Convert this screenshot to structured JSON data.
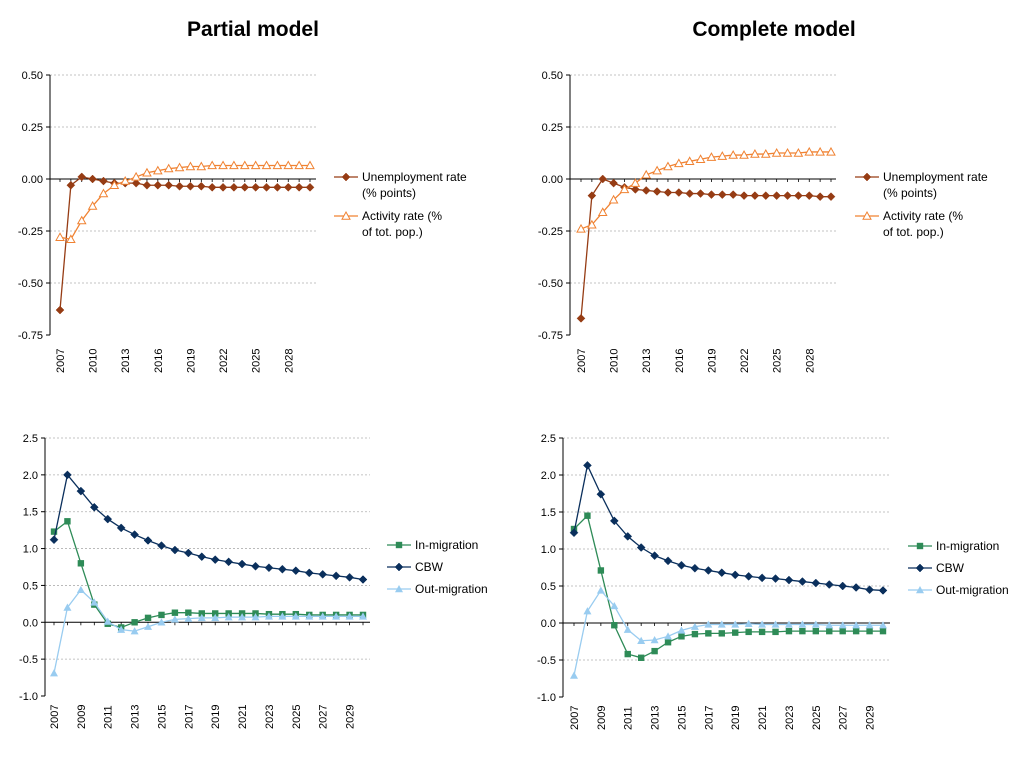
{
  "titles": {
    "left": "Partial model",
    "right": "Complete model"
  },
  "chart_data": [
    {
      "id": "partial-labour",
      "type": "line",
      "title": "",
      "xlabel": "",
      "ylabel": "",
      "x": [
        2007,
        2008,
        2009,
        2010,
        2011,
        2012,
        2013,
        2014,
        2015,
        2016,
        2017,
        2018,
        2019,
        2020,
        2021,
        2022,
        2023,
        2024,
        2025,
        2026,
        2027,
        2028,
        2029,
        2030
      ],
      "x_tick_labels": [
        "2007",
        "2010",
        "2013",
        "2016",
        "2019",
        "2022",
        "2025",
        "2028"
      ],
      "ylim": [
        -0.75,
        0.5
      ],
      "y_ticks": [
        -0.75,
        -0.5,
        -0.25,
        0,
        0.25,
        0.5
      ],
      "y_tick_labels": [
        "-0.75",
        "-0.50",
        "-0.25",
        "0.00",
        "0.25",
        "0.50"
      ],
      "grid": true,
      "legend": "right",
      "series": [
        {
          "name": "Unemployment rate (% points)",
          "color": "#963c14",
          "marker": "diamond",
          "values": [
            -0.63,
            -0.03,
            0.01,
            0.0,
            -0.01,
            -0.02,
            -0.02,
            -0.02,
            -0.03,
            -0.03,
            -0.03,
            -0.035,
            -0.035,
            -0.035,
            -0.04,
            -0.04,
            -0.04,
            -0.04,
            -0.04,
            -0.04,
            -0.04,
            -0.04,
            -0.04,
            -0.04
          ]
        },
        {
          "name": "Activity rate (% of tot. pop.)",
          "color": "#f08232",
          "marker": "triangle-open",
          "values": [
            -0.28,
            -0.29,
            -0.2,
            -0.13,
            -0.07,
            -0.03,
            -0.01,
            0.01,
            0.03,
            0.04,
            0.05,
            0.055,
            0.06,
            0.06,
            0.065,
            0.065,
            0.065,
            0.065,
            0.065,
            0.065,
            0.065,
            0.065,
            0.065,
            0.065
          ]
        }
      ]
    },
    {
      "id": "complete-labour",
      "type": "line",
      "title": "",
      "xlabel": "",
      "ylabel": "",
      "x": [
        2007,
        2008,
        2009,
        2010,
        2011,
        2012,
        2013,
        2014,
        2015,
        2016,
        2017,
        2018,
        2019,
        2020,
        2021,
        2022,
        2023,
        2024,
        2025,
        2026,
        2027,
        2028,
        2029,
        2030
      ],
      "x_tick_labels": [
        "2007",
        "2010",
        "2013",
        "2016",
        "2019",
        "2022",
        "2025",
        "2028"
      ],
      "ylim": [
        -0.75,
        0.5
      ],
      "y_ticks": [
        -0.75,
        -0.5,
        -0.25,
        0,
        0.25,
        0.5
      ],
      "y_tick_labels": [
        "-0.75",
        "-0.50",
        "-0.25",
        "0.00",
        "0.25",
        "0.50"
      ],
      "grid": true,
      "legend": "right",
      "series": [
        {
          "name": "Unemployment rate (% points)",
          "color": "#963c14",
          "marker": "diamond",
          "values": [
            -0.67,
            -0.08,
            0.0,
            -0.02,
            -0.04,
            -0.05,
            -0.055,
            -0.06,
            -0.065,
            -0.065,
            -0.07,
            -0.07,
            -0.075,
            -0.075,
            -0.075,
            -0.08,
            -0.08,
            -0.08,
            -0.08,
            -0.08,
            -0.08,
            -0.08,
            -0.085,
            -0.085
          ]
        },
        {
          "name": "Activity rate (% of tot. pop.)",
          "color": "#f08232",
          "marker": "triangle-open",
          "values": [
            -0.24,
            -0.22,
            -0.16,
            -0.1,
            -0.05,
            -0.02,
            0.02,
            0.04,
            0.06,
            0.075,
            0.085,
            0.095,
            0.105,
            0.11,
            0.115,
            0.115,
            0.12,
            0.12,
            0.125,
            0.125,
            0.125,
            0.13,
            0.13,
            0.13
          ]
        }
      ]
    },
    {
      "id": "partial-migration",
      "type": "line",
      "title": "",
      "xlabel": "",
      "ylabel": "",
      "x": [
        2007,
        2008,
        2009,
        2010,
        2011,
        2012,
        2013,
        2014,
        2015,
        2016,
        2017,
        2018,
        2019,
        2020,
        2021,
        2022,
        2023,
        2024,
        2025,
        2026,
        2027,
        2028,
        2029,
        2030
      ],
      "x_tick_labels": [
        "2007",
        "2009",
        "2011",
        "2013",
        "2015",
        "2017",
        "2019",
        "2021",
        "2023",
        "2025",
        "2027",
        "2029"
      ],
      "ylim": [
        -1.0,
        2.5
      ],
      "y_ticks": [
        -1,
        -0.5,
        0,
        0.5,
        1,
        1.5,
        2,
        2.5
      ],
      "y_tick_labels": [
        "-1.0",
        "-0.5",
        "0.0",
        "0.5",
        "1.0",
        "1.5",
        "2.0",
        "2.5"
      ],
      "grid": true,
      "legend": "right",
      "series": [
        {
          "name": "In-migration",
          "color": "#2e8b57",
          "marker": "square",
          "values": [
            1.23,
            1.37,
            0.8,
            0.24,
            -0.02,
            -0.07,
            0.0,
            0.06,
            0.1,
            0.13,
            0.13,
            0.12,
            0.12,
            0.12,
            0.12,
            0.12,
            0.11,
            0.11,
            0.11,
            0.1,
            0.1,
            0.1,
            0.1,
            0.1
          ]
        },
        {
          "name": "CBW",
          "color": "#0a2f5c",
          "marker": "diamond",
          "values": [
            1.12,
            2.0,
            1.78,
            1.56,
            1.4,
            1.28,
            1.19,
            1.11,
            1.04,
            0.98,
            0.94,
            0.89,
            0.85,
            0.82,
            0.79,
            0.76,
            0.74,
            0.72,
            0.7,
            0.67,
            0.65,
            0.63,
            0.61,
            0.58
          ]
        },
        {
          "name": "Out-migration",
          "color": "#99ccf0",
          "marker": "triangle",
          "values": [
            -0.69,
            0.2,
            0.44,
            0.27,
            0.01,
            -0.1,
            -0.12,
            -0.06,
            0.0,
            0.04,
            0.05,
            0.06,
            0.06,
            0.07,
            0.07,
            0.07,
            0.08,
            0.08,
            0.08,
            0.08,
            0.08,
            0.08,
            0.08,
            0.08
          ]
        }
      ]
    },
    {
      "id": "complete-migration",
      "type": "line",
      "title": "",
      "xlabel": "",
      "ylabel": "",
      "x": [
        2007,
        2008,
        2009,
        2010,
        2011,
        2012,
        2013,
        2014,
        2015,
        2016,
        2017,
        2018,
        2019,
        2020,
        2021,
        2022,
        2023,
        2024,
        2025,
        2026,
        2027,
        2028,
        2029,
        2030
      ],
      "x_tick_labels": [
        "2007",
        "2009",
        "2011",
        "2013",
        "2015",
        "2017",
        "2019",
        "2021",
        "2023",
        "2025",
        "2027",
        "2029"
      ],
      "ylim": [
        -1.0,
        2.5
      ],
      "y_ticks": [
        -1,
        -0.5,
        0,
        0.5,
        1,
        1.5,
        2,
        2.5
      ],
      "y_tick_labels": [
        "-1.0",
        "-0.5",
        "0.0",
        "0.5",
        "1.0",
        "1.5",
        "2.0",
        "2.5"
      ],
      "grid": true,
      "legend": "right",
      "series": [
        {
          "name": "In-migration",
          "color": "#2e8b57",
          "marker": "square",
          "values": [
            1.27,
            1.45,
            0.71,
            -0.03,
            -0.42,
            -0.47,
            -0.38,
            -0.26,
            -0.18,
            -0.15,
            -0.14,
            -0.14,
            -0.13,
            -0.12,
            -0.12,
            -0.12,
            -0.11,
            -0.11,
            -0.11,
            -0.11,
            -0.11,
            -0.11,
            -0.11,
            -0.11
          ]
        },
        {
          "name": "CBW",
          "color": "#0a2f5c",
          "marker": "diamond",
          "values": [
            1.22,
            2.13,
            1.74,
            1.38,
            1.17,
            1.02,
            0.91,
            0.84,
            0.78,
            0.74,
            0.71,
            0.68,
            0.65,
            0.63,
            0.61,
            0.6,
            0.58,
            0.56,
            0.54,
            0.52,
            0.5,
            0.48,
            0.45,
            0.44
          ]
        },
        {
          "name": "Out-migration",
          "color": "#99ccf0",
          "marker": "triangle",
          "values": [
            -0.71,
            0.16,
            0.44,
            0.23,
            -0.09,
            -0.24,
            -0.23,
            -0.18,
            -0.1,
            -0.05,
            -0.02,
            -0.02,
            -0.02,
            -0.01,
            -0.02,
            -0.02,
            -0.02,
            -0.02,
            -0.02,
            -0.03,
            -0.03,
            -0.03,
            -0.03,
            -0.03
          ]
        }
      ]
    }
  ]
}
